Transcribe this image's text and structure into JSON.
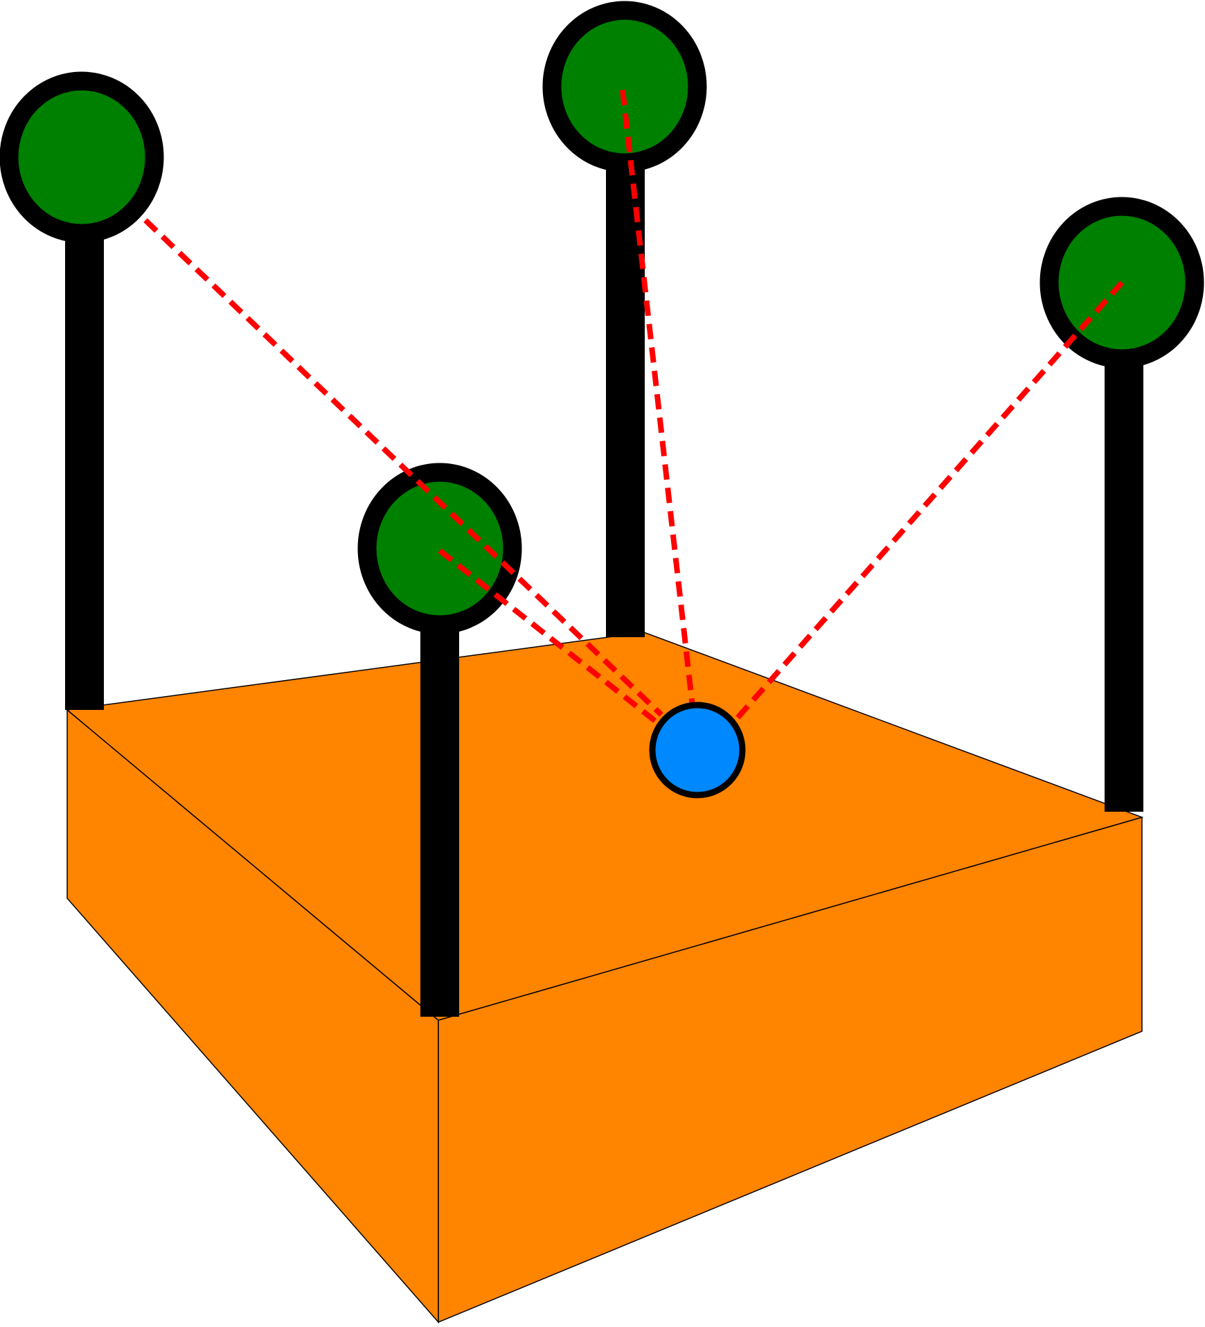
{
  "diagram": {
    "colors": {
      "box_fill": "#FF8400",
      "box_edge": "#000000",
      "pole": "#000000",
      "anchor_fill": "#008000",
      "anchor_stroke": "#000000",
      "tag_fill": "#0088FF",
      "tag_stroke": "#000000",
      "ranging_line": "#FF0000"
    },
    "anchors": [
      {
        "id": "anchor-back-left"
      },
      {
        "id": "anchor-front"
      },
      {
        "id": "anchor-back-middle"
      },
      {
        "id": "anchor-right"
      }
    ],
    "tag": {
      "id": "tag"
    },
    "ranging_lines": [
      {
        "from": "anchor-back-left",
        "to": "tag"
      },
      {
        "from": "anchor-front",
        "to": "tag"
      },
      {
        "from": "anchor-back-middle",
        "to": "tag"
      },
      {
        "from": "anchor-right",
        "to": "tag"
      }
    ]
  }
}
